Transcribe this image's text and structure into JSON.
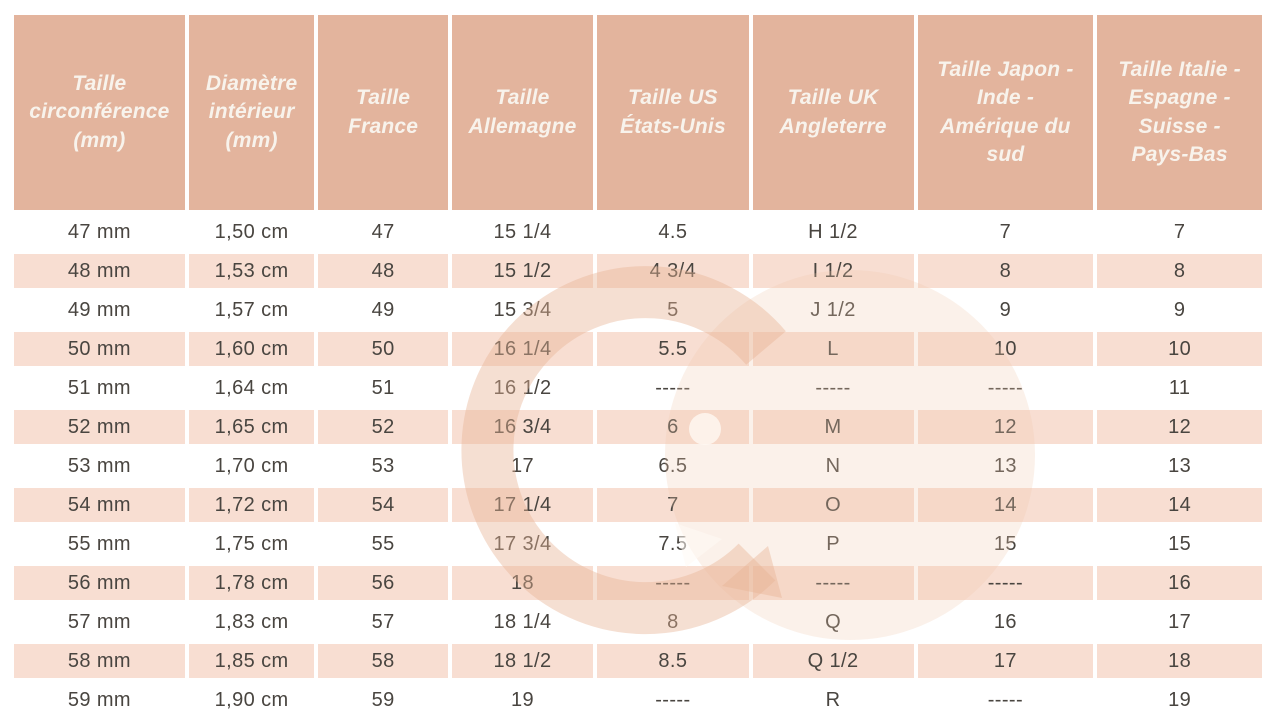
{
  "table": {
    "headers": [
      "Taille circonférence (mm)",
      "Diamètre intérieur (mm)",
      "Taille France",
      "Taille Allemagne",
      "Taille US États-Unis",
      "Taille UK Angleterre",
      "Taille Japon - Inde - Amérique du sud",
      "Taille Italie - Espagne - Suisse - Pays-Bas"
    ],
    "rows": [
      [
        "47 mm",
        "1,50 cm",
        "47",
        "15 1/4",
        "4.5",
        "H 1/2",
        "7",
        "7"
      ],
      [
        "48 mm",
        "1,53 cm",
        "48",
        "15 1/2",
        "4 3/4",
        "I 1/2",
        "8",
        "8"
      ],
      [
        "49 mm",
        "1,57 cm",
        "49",
        "15 3/4",
        "5",
        "J 1/2",
        "9",
        "9"
      ],
      [
        "50 mm",
        "1,60 cm",
        "50",
        "16 1/4",
        "5.5",
        "L",
        "10",
        "10"
      ],
      [
        "51 mm",
        "1,64 cm",
        "51",
        "16 1/2",
        "-----",
        "-----",
        "-----",
        "11"
      ],
      [
        "52 mm",
        "1,65 cm",
        "52",
        "16 3/4",
        "6",
        "M",
        "12",
        "12"
      ],
      [
        "53 mm",
        "1,70 cm",
        "53",
        "17",
        "6.5",
        "N",
        "13",
        "13"
      ],
      [
        "54 mm",
        "1,72 cm",
        "54",
        "17 1/4",
        "7",
        "O",
        "14",
        "14"
      ],
      [
        "55 mm",
        "1,75 cm",
        "55",
        "17 3/4",
        "7.5",
        "P",
        "15",
        "15"
      ],
      [
        "56 mm",
        "1,78 cm",
        "56",
        "18",
        "-----",
        "-----",
        "-----",
        "16"
      ],
      [
        "57 mm",
        "1,83 cm",
        "57",
        "18 1/4",
        "8",
        "Q",
        "16",
        "17"
      ],
      [
        "58 mm",
        "1,85 cm",
        "58",
        "18 1/2",
        "8.5",
        "Q 1/2",
        "17",
        "18"
      ],
      [
        "59 mm",
        "1,90 cm",
        "59",
        "19",
        "-----",
        "R",
        "-----",
        "19"
      ]
    ]
  },
  "watermark": {
    "letter": "G"
  },
  "colors": {
    "header_bg": "#e3b49d",
    "row_alt_bg": "#f8ded2",
    "row_bg": "#ffffff",
    "header_text": "#f8f3ec",
    "body_text": "#494540",
    "watermark_tint": "#e8b294"
  }
}
